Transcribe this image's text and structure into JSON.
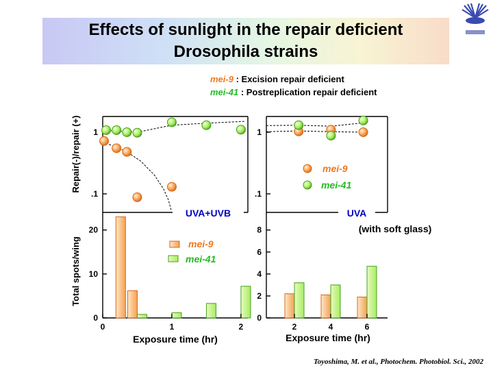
{
  "slide": {
    "title_line1": "Effects of sunlight in the repair deficient",
    "title_line2": "Drosophila strains",
    "legend_top": [
      {
        "strain": "mei-9",
        "desc": " : Excision repair deficient",
        "color": "#f07820"
      },
      {
        "strain": "mei-41",
        "desc": " : Postreplication repair deficient",
        "color": "#22bb22"
      }
    ],
    "citation": "Toyoshima, M. et al., Photochem. Photobiol. Sci., 2002"
  },
  "colors": {
    "mei9_fill": "#f6a050",
    "mei9_stroke": "#d86818",
    "mei41_fill": "#a8ec60",
    "mei41_stroke": "#48a020",
    "label_blue": "#0000c0",
    "series_label_orange": "#f07820",
    "series_label_green": "#22bb22"
  },
  "chart_data": [
    {
      "type": "scatter",
      "panel": "uva-uvb-repair",
      "ylabel": "Repair(-)/repair (+)",
      "yscale": "log",
      "ylim": [
        0.05,
        1.8
      ],
      "yticks": [
        "1",
        ".1"
      ],
      "ytick_values": [
        1,
        0.1
      ],
      "xlim": [
        0,
        2.1
      ],
      "label": "UVA+UVB",
      "series": [
        {
          "name": "mei-9",
          "points": [
            [
              0.02,
              0.72
            ],
            [
              0.2,
              0.55
            ],
            [
              0.35,
              0.48
            ],
            [
              0.5,
              0.088
            ],
            [
              1.0,
              0.13
            ]
          ]
        },
        {
          "name": "mei-41",
          "points": [
            [
              0.05,
              1.08
            ],
            [
              0.2,
              1.08
            ],
            [
              0.35,
              1.0
            ],
            [
              0.5,
              0.98
            ],
            [
              1.0,
              1.45
            ],
            [
              1.5,
              1.3
            ],
            [
              2.0,
              1.1
            ]
          ]
        }
      ],
      "fit_lines": [
        {
          "series": "mei-41",
          "points": [
            [
              0.0,
              1.08
            ],
            [
              0.5,
              1.0
            ],
            [
              1.0,
              1.3
            ],
            [
              1.5,
              1.4
            ],
            [
              2.05,
              1.5
            ]
          ]
        },
        {
          "series": "mei-9",
          "points": [
            [
              0.0,
              0.7
            ],
            [
              0.35,
              0.48
            ],
            [
              0.55,
              0.34
            ],
            [
              0.75,
              0.2
            ],
            [
              0.88,
              0.12
            ],
            [
              0.95,
              0.08
            ],
            [
              0.99,
              0.055
            ]
          ]
        }
      ]
    },
    {
      "type": "scatter",
      "panel": "uva-repair",
      "yscale": "log",
      "ylim": [
        0.05,
        1.8
      ],
      "yticks": [
        "1",
        ".1"
      ],
      "ytick_values": [
        1,
        0.1
      ],
      "xlim": [
        0,
        7.5
      ],
      "label": "UVA",
      "series_labels": [
        "mei-9",
        "mei-41"
      ],
      "series": [
        {
          "name": "mei-9",
          "points": [
            [
              2,
              1.03
            ],
            [
              4,
              1.1
            ],
            [
              6,
              1.0
            ]
          ]
        },
        {
          "name": "mei-41",
          "points": [
            [
              2,
              1.3
            ],
            [
              4,
              0.88
            ],
            [
              6,
              1.55
            ]
          ]
        }
      ],
      "fit_lines": [
        {
          "series": "mei-41",
          "points": [
            [
              0.0,
              1.28
            ],
            [
              2.0,
              1.3
            ],
            [
              4.0,
              1.25
            ],
            [
              6.0,
              1.42
            ]
          ]
        },
        {
          "series": "mei-9",
          "points": [
            [
              0.0,
              1.02
            ],
            [
              2.0,
              1.05
            ],
            [
              4.0,
              1.02
            ],
            [
              6.0,
              1.0
            ]
          ]
        }
      ]
    },
    {
      "type": "bar",
      "panel": "uva-uvb-spots",
      "ylabel": "Total spots/wing",
      "xlabel": "Exposure time (hr)",
      "xlim": [
        0,
        2.1
      ],
      "ylim": [
        0,
        24
      ],
      "xticks": [
        0,
        1,
        2
      ],
      "yticks": [
        0,
        10,
        20
      ],
      "series": [
        {
          "name": "mei-9",
          "x": [
            0.33,
            0.5
          ],
          "values": [
            23,
            6.2
          ]
        },
        {
          "name": "mei-41",
          "x": [
            0.5,
            1.0,
            1.5,
            2.0
          ],
          "values": [
            0.8,
            1.2,
            3.3,
            7.2
          ]
        }
      ]
    },
    {
      "type": "bar",
      "panel": "uva-spots",
      "xlabel": "Exposure time (hr)",
      "annotation": "(with soft glass)",
      "ylim": [
        0,
        9.6
      ],
      "categories": [
        "2",
        "4",
        "6"
      ],
      "yticks": [
        0,
        2,
        4,
        6,
        8
      ],
      "series": [
        {
          "name": "mei-9",
          "values": [
            2.2,
            2.1,
            1.9
          ]
        },
        {
          "name": "mei-41",
          "values": [
            3.2,
            3.0,
            4.7
          ]
        }
      ]
    }
  ]
}
